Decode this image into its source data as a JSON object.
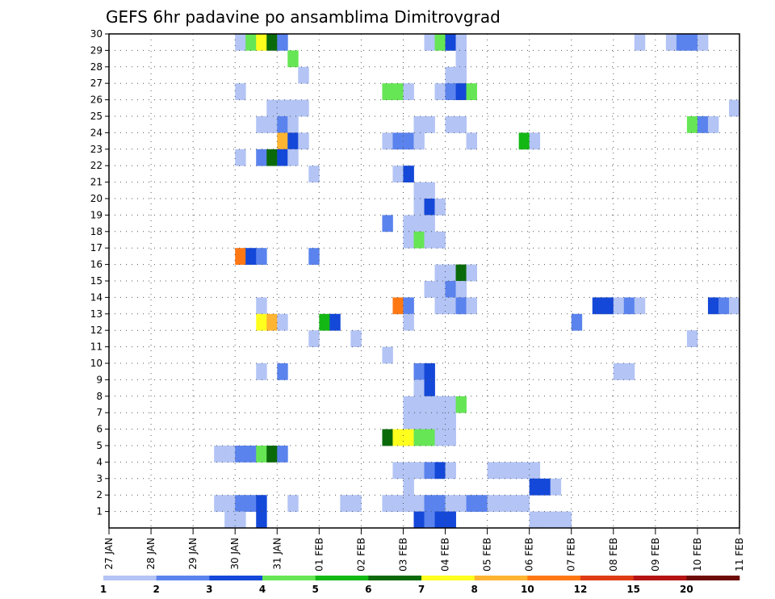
{
  "chart_data": {
    "type": "heatmap",
    "title": "GEFS 6hr padavine po ansamblima Dimitrovgrad",
    "xlabel": "",
    "ylabel": "",
    "x_tick_labels": [
      "27 JAN",
      "28 JAN",
      "29 JAN",
      "30 JAN",
      "31 JAN",
      "01 FEB",
      "02 FEB",
      "03 FEB",
      "04 FEB",
      "05 FEB",
      "06 FEB",
      "07 FEB",
      "08 FEB",
      "09 FEB",
      "10 FEB",
      "11 FEB"
    ],
    "y_tick_labels": [
      "1",
      "2",
      "3",
      "4",
      "5",
      "6",
      "7",
      "8",
      "9",
      "10",
      "11",
      "12",
      "13",
      "14",
      "15",
      "16",
      "17",
      "18",
      "19",
      "20",
      "21",
      "22",
      "23",
      "24",
      "25",
      "26",
      "27",
      "28",
      "29",
      "30"
    ],
    "x_range_steps": [
      0,
      60
    ],
    "y_range": [
      0,
      30
    ],
    "step_per_day": 4,
    "grid": "dotted",
    "legend": {
      "placement": "bottom",
      "labels": [
        "1",
        "2",
        "3",
        "4",
        "5",
        "6",
        "7",
        "8",
        "10",
        "12",
        "15",
        "20"
      ],
      "colors": [
        "#b3c4f5",
        "#5b83ee",
        "#1448d8",
        "#66e655",
        "#14b814",
        "#0a6a0a",
        "#ffff1e",
        "#ffb432",
        "#ff7814",
        "#e03c14",
        "#b41414",
        "#6e0a0a"
      ]
    },
    "level_colors": {
      "1": "#b3c4f5",
      "2": "#5b83ee",
      "3": "#1448d8",
      "4": "#66e655",
      "5": "#14b814",
      "6": "#0a6a0a",
      "7": "#ffff1e",
      "8": "#ffb432",
      "9": "#ff7814",
      "10": "#e03c14",
      "11": "#b41414",
      "12": "#6e0a0a"
    },
    "cells": [
      [
        12,
        0,
        1
      ],
      [
        13,
        0,
        4
      ],
      [
        14,
        0,
        7
      ],
      [
        15,
        0,
        6
      ],
      [
        16,
        0,
        2
      ],
      [
        30,
        0,
        1
      ],
      [
        31,
        0,
        4
      ],
      [
        32,
        0,
        3
      ],
      [
        33,
        0,
        1
      ],
      [
        50,
        0,
        1
      ],
      [
        53,
        0,
        1
      ],
      [
        54,
        0,
        2
      ],
      [
        55,
        0,
        2
      ],
      [
        56,
        0,
        1
      ],
      [
        17,
        1,
        4
      ],
      [
        33,
        1,
        1
      ],
      [
        18,
        2,
        1
      ],
      [
        32,
        2,
        1
      ],
      [
        33,
        2,
        1
      ],
      [
        12,
        3,
        1
      ],
      [
        26,
        3,
        4
      ],
      [
        27,
        3,
        4
      ],
      [
        28,
        3,
        1
      ],
      [
        31,
        3,
        1
      ],
      [
        32,
        3,
        2
      ],
      [
        33,
        3,
        3
      ],
      [
        34,
        3,
        4
      ],
      [
        15,
        4,
        1
      ],
      [
        16,
        4,
        1
      ],
      [
        17,
        4,
        1
      ],
      [
        18,
        4,
        1
      ],
      [
        59,
        4,
        1
      ],
      [
        60,
        4,
        7
      ],
      [
        14,
        5,
        1
      ],
      [
        15,
        5,
        1
      ],
      [
        16,
        5,
        2
      ],
      [
        17,
        5,
        1
      ],
      [
        29,
        5,
        1
      ],
      [
        30,
        5,
        1
      ],
      [
        32,
        5,
        1
      ],
      [
        33,
        5,
        1
      ],
      [
        55,
        5,
        4
      ],
      [
        56,
        5,
        2
      ],
      [
        57,
        5,
        1
      ],
      [
        16,
        6,
        8
      ],
      [
        17,
        6,
        3
      ],
      [
        18,
        6,
        1
      ],
      [
        26,
        6,
        1
      ],
      [
        27,
        6,
        2
      ],
      [
        28,
        6,
        2
      ],
      [
        29,
        6,
        1
      ],
      [
        34,
        6,
        1
      ],
      [
        39,
        6,
        5
      ],
      [
        40,
        6,
        1
      ],
      [
        12,
        7,
        1
      ],
      [
        14,
        7,
        2
      ],
      [
        15,
        7,
        6
      ],
      [
        16,
        7,
        3
      ],
      [
        17,
        7,
        1
      ],
      [
        19,
        8,
        1
      ],
      [
        27,
        8,
        1
      ],
      [
        28,
        8,
        3
      ],
      [
        29,
        9,
        1
      ],
      [
        30,
        9,
        1
      ],
      [
        29,
        10,
        1
      ],
      [
        30,
        10,
        3
      ],
      [
        31,
        10,
        1
      ],
      [
        26,
        11,
        2
      ],
      [
        28,
        11,
        1
      ],
      [
        29,
        11,
        1
      ],
      [
        30,
        11,
        1
      ],
      [
        28,
        12,
        1
      ],
      [
        29,
        12,
        4
      ],
      [
        30,
        12,
        1
      ],
      [
        31,
        12,
        1
      ],
      [
        12,
        13,
        9
      ],
      [
        13,
        13,
        3
      ],
      [
        14,
        13,
        2
      ],
      [
        19,
        13,
        2
      ],
      [
        31,
        14,
        1
      ],
      [
        32,
        14,
        1
      ],
      [
        33,
        14,
        6
      ],
      [
        34,
        14,
        1
      ],
      [
        30,
        15,
        1
      ],
      [
        31,
        15,
        1
      ],
      [
        32,
        15,
        2
      ],
      [
        33,
        15,
        1
      ],
      [
        14,
        16,
        1
      ],
      [
        27,
        16,
        9
      ],
      [
        28,
        16,
        2
      ],
      [
        31,
        16,
        1
      ],
      [
        32,
        16,
        1
      ],
      [
        33,
        16,
        2
      ],
      [
        34,
        16,
        1
      ],
      [
        46,
        16,
        3
      ],
      [
        47,
        16,
        3
      ],
      [
        48,
        16,
        1
      ],
      [
        49,
        16,
        2
      ],
      [
        50,
        16,
        1
      ],
      [
        57,
        16,
        3
      ],
      [
        58,
        16,
        2
      ],
      [
        59,
        16,
        1
      ],
      [
        60,
        16,
        2
      ],
      [
        14,
        17,
        7
      ],
      [
        15,
        17,
        8
      ],
      [
        16,
        17,
        1
      ],
      [
        28,
        17,
        1
      ],
      [
        20,
        17,
        5
      ],
      [
        21,
        17,
        3
      ],
      [
        44,
        17,
        2
      ],
      [
        19,
        18,
        1
      ],
      [
        23,
        18,
        1
      ],
      [
        55,
        18,
        1
      ],
      [
        26,
        19,
        1
      ],
      [
        14,
        20,
        1
      ],
      [
        16,
        20,
        2
      ],
      [
        29,
        20,
        2
      ],
      [
        30,
        20,
        3
      ],
      [
        48,
        20,
        1
      ],
      [
        49,
        20,
        1
      ],
      [
        29,
        21,
        1
      ],
      [
        30,
        21,
        3
      ],
      [
        30,
        22,
        1
      ],
      [
        31,
        22,
        1
      ],
      [
        28,
        22,
        1
      ],
      [
        29,
        22,
        1
      ],
      [
        31,
        22,
        1
      ],
      [
        32,
        22,
        1
      ],
      [
        33,
        22,
        4
      ],
      [
        28,
        23,
        1
      ],
      [
        29,
        23,
        1
      ],
      [
        30,
        23,
        1
      ],
      [
        31,
        23,
        1
      ],
      [
        32,
        23,
        1
      ],
      [
        26,
        24,
        6
      ],
      [
        27,
        24,
        7
      ],
      [
        28,
        24,
        7
      ],
      [
        29,
        24,
        4
      ],
      [
        30,
        24,
        4
      ],
      [
        31,
        24,
        1
      ],
      [
        32,
        24,
        1
      ],
      [
        10,
        25,
        1
      ],
      [
        11,
        25,
        1
      ],
      [
        12,
        25,
        2
      ],
      [
        13,
        25,
        2
      ],
      [
        14,
        25,
        4
      ],
      [
        15,
        25,
        6
      ],
      [
        16,
        25,
        2
      ],
      [
        27,
        26,
        1
      ],
      [
        28,
        26,
        1
      ],
      [
        29,
        26,
        1
      ],
      [
        30,
        26,
        2
      ],
      [
        31,
        26,
        3
      ],
      [
        32,
        26,
        1
      ],
      [
        36,
        26,
        1
      ],
      [
        37,
        26,
        1
      ],
      [
        38,
        26,
        1
      ],
      [
        39,
        26,
        1
      ],
      [
        40,
        26,
        1
      ],
      [
        28,
        27,
        1
      ],
      [
        40,
        27,
        3
      ],
      [
        41,
        27,
        3
      ],
      [
        42,
        27,
        1
      ],
      [
        10,
        28,
        1
      ],
      [
        11,
        28,
        1
      ],
      [
        12,
        28,
        2
      ],
      [
        13,
        28,
        2
      ],
      [
        14,
        28,
        3
      ],
      [
        17,
        28,
        1
      ],
      [
        22,
        28,
        1
      ],
      [
        23,
        28,
        1
      ],
      [
        26,
        28,
        1
      ],
      [
        27,
        28,
        1
      ],
      [
        28,
        28,
        1
      ],
      [
        29,
        28,
        1
      ],
      [
        30,
        28,
        2
      ],
      [
        31,
        28,
        2
      ],
      [
        32,
        28,
        1
      ],
      [
        33,
        28,
        1
      ],
      [
        34,
        28,
        2
      ],
      [
        35,
        28,
        2
      ],
      [
        36,
        28,
        1
      ],
      [
        37,
        28,
        1
      ],
      [
        38,
        28,
        1
      ],
      [
        39,
        28,
        1
      ],
      [
        11,
        29,
        1
      ],
      [
        12,
        29,
        1
      ],
      [
        14,
        29,
        3
      ],
      [
        29,
        29,
        3
      ],
      [
        30,
        29,
        2
      ],
      [
        31,
        29,
        3
      ],
      [
        32,
        29,
        3
      ],
      [
        40,
        29,
        1
      ],
      [
        41,
        29,
        1
      ],
      [
        42,
        29,
        1
      ],
      [
        43,
        29,
        1
      ]
    ]
  }
}
